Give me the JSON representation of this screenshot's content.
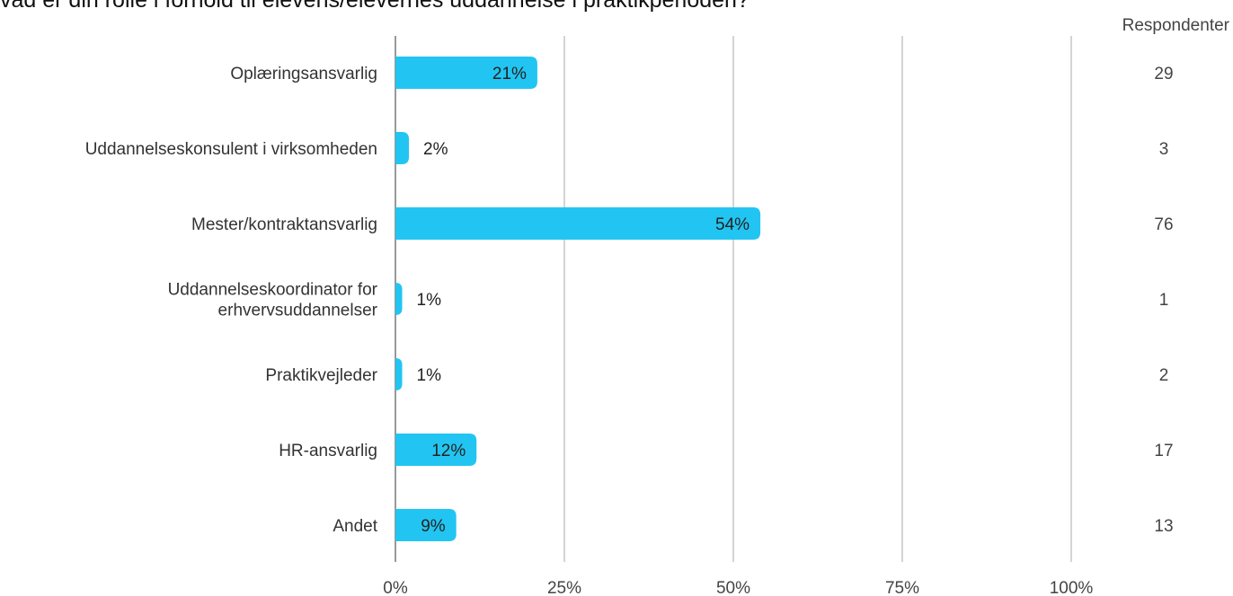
{
  "title": "vad er din rolle i forhold til elevens/elevernes uddannelse i praktikperioden?",
  "respondents_header": "Respondenter",
  "colors": {
    "bar": "#22c5f2",
    "grid": "#aaaaaa",
    "axis": "#999999"
  },
  "chart_data": {
    "type": "bar",
    "orientation": "horizontal",
    "title": "vad er din rolle i forhold til elevens/elevernes uddannelse i praktikperioden?",
    "xlabel": "",
    "ylabel": "",
    "xlim": [
      0,
      100
    ],
    "grid": true,
    "x_ticks": [
      "0%",
      "25%",
      "50%",
      "75%",
      "100%"
    ],
    "categories": [
      [
        "Oplæringsansvarlig"
      ],
      [
        "Uddannelseskonsulent i virksomheden"
      ],
      [
        "Mester/kontraktansvarlig"
      ],
      [
        "Uddannelseskoordinator for",
        "erhvervsuddannelser"
      ],
      [
        "Praktikvejleder"
      ],
      [
        "HR-ansvarlig"
      ],
      [
        "Andet"
      ]
    ],
    "values": [
      21,
      2,
      54,
      1,
      1,
      12,
      9
    ],
    "value_labels": [
      "21%",
      "2%",
      "54%",
      "1%",
      "1%",
      "12%",
      "9%"
    ],
    "respondents": [
      "29",
      "3",
      "76",
      "1",
      "2",
      "17",
      "13"
    ]
  }
}
